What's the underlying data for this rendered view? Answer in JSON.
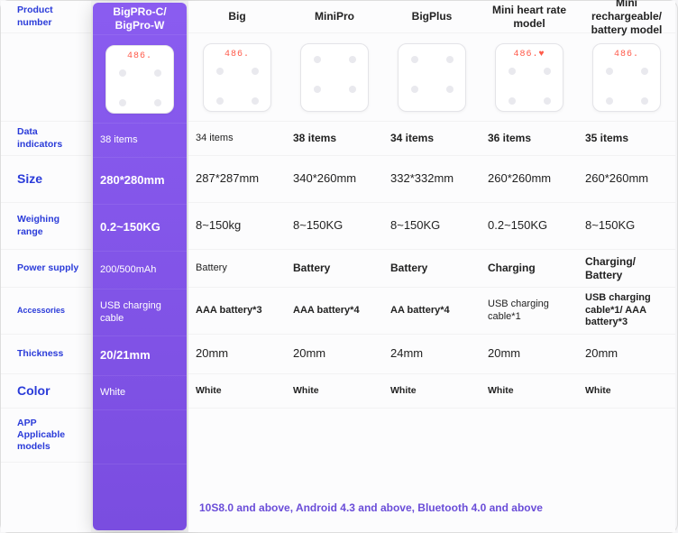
{
  "colors": {
    "label_text": "#2a3bd9",
    "highlight_bg_top": "#8a5cf0",
    "highlight_bg_bottom": "#7a4de0",
    "highlight_text": "#ffffff",
    "body_text": "#222222",
    "readout_text": "#ff5a4a",
    "background": "#fcfcfd"
  },
  "row_labels": {
    "product_number": "Product number",
    "data_indicators": "Data indicators",
    "size": "Size",
    "weighing_range": "Weighing range",
    "power_supply": "Power supply",
    "accessories": "Accessories",
    "thickness": "Thickness",
    "color": "Color",
    "app": "APP Applicable models"
  },
  "highlight": {
    "name": "BigPRo-C/ BigPro-W",
    "readout": "486.",
    "data_indicators": "38 items",
    "size": "280*280mm",
    "weighing_range": "0.2~150KG",
    "power_supply": "200/500mAh",
    "accessories": "USB charging cable",
    "thickness": "20/21mm",
    "color": "White"
  },
  "columns": [
    {
      "name": "Big",
      "readout": "486.",
      "data_indicators": "34 items",
      "size": "287*287mm",
      "weighing_range": "8~150kg",
      "power_supply": "Battery",
      "accessories": "AAA battery*3",
      "thickness": "20mm",
      "color": "White",
      "bold": {
        "data_indicators": false,
        "power_supply": false,
        "accessories": true
      }
    },
    {
      "name": "MiniPro",
      "readout": "",
      "data_indicators": "38 items",
      "size": "340*260mm",
      "weighing_range": "8~150KG",
      "power_supply": "Battery",
      "accessories": "AAA battery*4",
      "thickness": "20mm",
      "color": "White",
      "bold": {
        "data_indicators": true,
        "power_supply": true,
        "accessories": true
      }
    },
    {
      "name": "BigPlus",
      "readout": "",
      "data_indicators": "34 items",
      "size": "332*332mm",
      "weighing_range": "8~150KG",
      "power_supply": "Battery",
      "accessories": "AA battery*4",
      "thickness": "24mm",
      "color": "White",
      "bold": {
        "data_indicators": true,
        "power_supply": true,
        "accessories": true
      }
    },
    {
      "name": "Mini heart rate model",
      "readout": "486.♥",
      "data_indicators": "36 items",
      "size": "260*260mm",
      "weighing_range": "0.2~150KG",
      "power_supply": "Charging",
      "accessories": "USB charging cable*1",
      "thickness": "20mm",
      "color": "White",
      "bold": {
        "data_indicators": true,
        "power_supply": true,
        "accessories": false
      }
    },
    {
      "name": "Mini rechargeable/ battery model",
      "readout": "486.",
      "data_indicators": "35 items",
      "size": "260*260mm",
      "weighing_range": "8~150KG",
      "power_supply": "Charging/ Battery",
      "accessories": "USB charging cable*1/ AAA battery*3",
      "thickness": "20mm",
      "color": "White",
      "bold": {
        "data_indicators": true,
        "power_supply": true,
        "accessories": true
      }
    }
  ],
  "app_text": "10S8.0 and above, Android 4.3 and above, Bluetooth 4.0 and above"
}
